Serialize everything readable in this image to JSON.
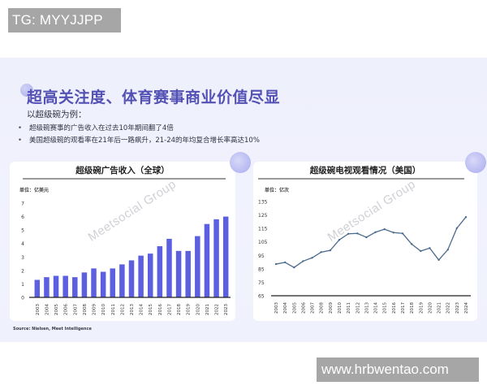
{
  "watermarks": {
    "top": "TG: MYYJJPP",
    "bottom": "www.hrbwentao.com",
    "chart_brand": "Meetsocial Group"
  },
  "slide": {
    "title": "超高关注度、体育赛事商业价值尽显",
    "intro": "以超级碗为例：",
    "bullets": [
      "超级碗赛事的广告收入在过去10年期间翻了4倍",
      "美国超级碗的观看率在21年后一路飙升，21-24的年均复合增长率高达10%"
    ],
    "bullet_glyph": "•",
    "source": "Source: Nielsen, Meet Intelligence"
  },
  "colors": {
    "title": "#5352b4",
    "bar": "#5b5fe0",
    "line": "#4a6a8e",
    "background": "#eef0fc"
  },
  "chart_data": [
    {
      "type": "bar",
      "title": "超级碗广告收入（全球）",
      "unit": "单位：亿美元",
      "xlabel": "",
      "ylabel": "亿美元",
      "ylim": [
        0,
        7
      ],
      "yticks": [
        0,
        1,
        2,
        3,
        4,
        5,
        6,
        7
      ],
      "grid": false,
      "categories": [
        "2003",
        "2004",
        "2005",
        "2006",
        "2007",
        "2008",
        "2009",
        "2010",
        "2011",
        "2012",
        "2013",
        "2014",
        "2015",
        "2016",
        "2017",
        "2018",
        "2019",
        "2020",
        "2021",
        "2022",
        "2023"
      ],
      "values": [
        1.3,
        1.5,
        1.6,
        1.6,
        1.5,
        1.85,
        2.15,
        1.9,
        2.15,
        2.45,
        2.75,
        3.1,
        3.25,
        3.8,
        4.35,
        3.45,
        3.45,
        4.55,
        5.45,
        5.8,
        6.0
      ]
    },
    {
      "type": "line",
      "title": "超级碗电视观看情况（美国）",
      "unit": "单位：亿次",
      "xlabel": "",
      "ylabel": "亿次",
      "ylim": [
        65,
        135
      ],
      "yticks": [
        65,
        75,
        85,
        95,
        105,
        115,
        125,
        135
      ],
      "grid": false,
      "categories": [
        "2003",
        "2004",
        "2005",
        "2006",
        "2007",
        "2008",
        "2009",
        "2010",
        "2011",
        "2012",
        "2013",
        "2014",
        "2015",
        "2016",
        "2017",
        "2018",
        "2019",
        "2020",
        "2021",
        "2022",
        "2023",
        "2024"
      ],
      "values": [
        88.5,
        89.8,
        86.0,
        90.7,
        93.2,
        97.4,
        98.7,
        106.5,
        111.0,
        111.3,
        108.4,
        112.2,
        114.4,
        111.9,
        111.3,
        103.4,
        98.2,
        100.4,
        91.6,
        99.2,
        115.2,
        123.4
      ]
    }
  ]
}
